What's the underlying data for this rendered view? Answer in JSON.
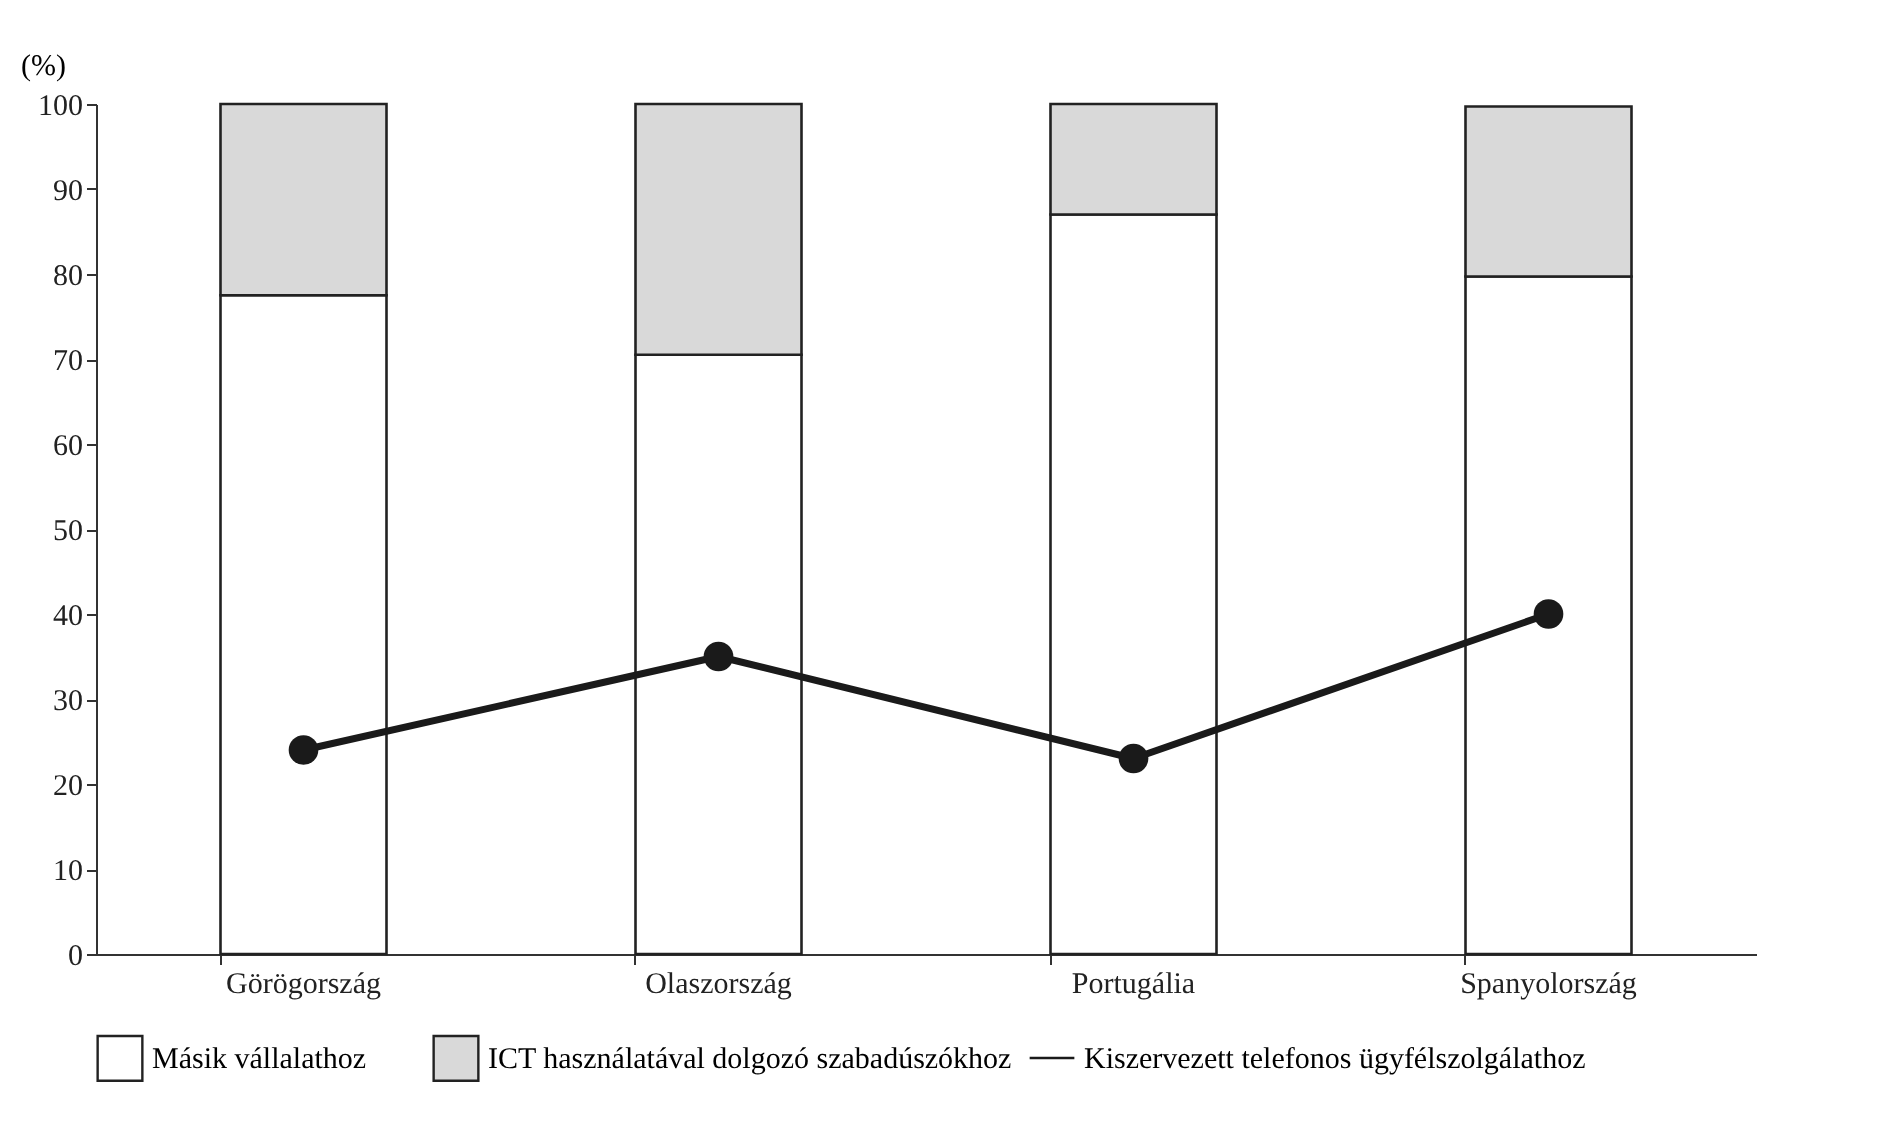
{
  "chart_data": {
    "type": "bar",
    "stacked": true,
    "ylabel": "(%)",
    "categories": [
      "Görögország",
      "Olaszország",
      "Portugália",
      "Spanyolország"
    ],
    "series": [
      {
        "name": "Másik vállalathoz",
        "color": "#ffffff",
        "values": [
          77.5,
          70.5,
          87,
          79.7
        ]
      },
      {
        "name": "ICT használatával dolgozó szabadúszókhoz",
        "color": "#d9d9d9",
        "values": [
          22.5,
          29.5,
          13,
          20
        ]
      },
      {
        "name": "Kiszervezett telefonos ügyfélszolgálathoz",
        "type": "line",
        "color": "#1a1a1a",
        "values": [
          24,
          35,
          23,
          40
        ]
      }
    ],
    "ylim": [
      0,
      100
    ],
    "yticks": [
      0,
      10,
      20,
      30,
      40,
      50,
      60,
      70,
      80,
      90,
      100
    ],
    "grid": false,
    "legend": "bottom",
    "marker": "circle",
    "line_style": "solid"
  }
}
